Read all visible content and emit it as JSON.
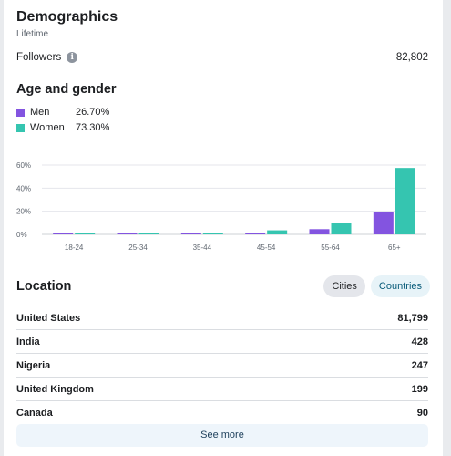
{
  "demographics": {
    "title": "Demographics",
    "subtitle": "Lifetime",
    "followers_label": "Followers",
    "followers_value": "82,802"
  },
  "age_gender": {
    "title": "Age and gender",
    "legend": [
      {
        "label": "Men",
        "percent": "26.70%",
        "color": "#8354e0"
      },
      {
        "label": "Women",
        "percent": "73.30%",
        "color": "#35c5b0"
      }
    ]
  },
  "chart_data": {
    "type": "bar",
    "categories": [
      "18-24",
      "25-34",
      "35-44",
      "45-54",
      "55-64",
      "65+"
    ],
    "series": [
      {
        "name": "Men",
        "color": "#8354e0",
        "values": [
          0.3,
          0.3,
          0.5,
          1.5,
          4.5,
          19.5
        ]
      },
      {
        "name": "Women",
        "color": "#35c5b0",
        "values": [
          0.3,
          0.5,
          1,
          3.5,
          9.5,
          57.5
        ]
      }
    ],
    "yticks": [
      "0%",
      "20%",
      "40%",
      "60%"
    ],
    "ylim": [
      0,
      60
    ],
    "grid": true
  },
  "location": {
    "title": "Location",
    "tabs": {
      "cities": "Cities",
      "countries": "Countries"
    },
    "rows": [
      {
        "name": "United States",
        "value": "81,799"
      },
      {
        "name": "India",
        "value": "428"
      },
      {
        "name": "Nigeria",
        "value": "247"
      },
      {
        "name": "United Kingdom",
        "value": "199"
      },
      {
        "name": "Canada",
        "value": "90"
      }
    ],
    "see_more": "See more"
  }
}
